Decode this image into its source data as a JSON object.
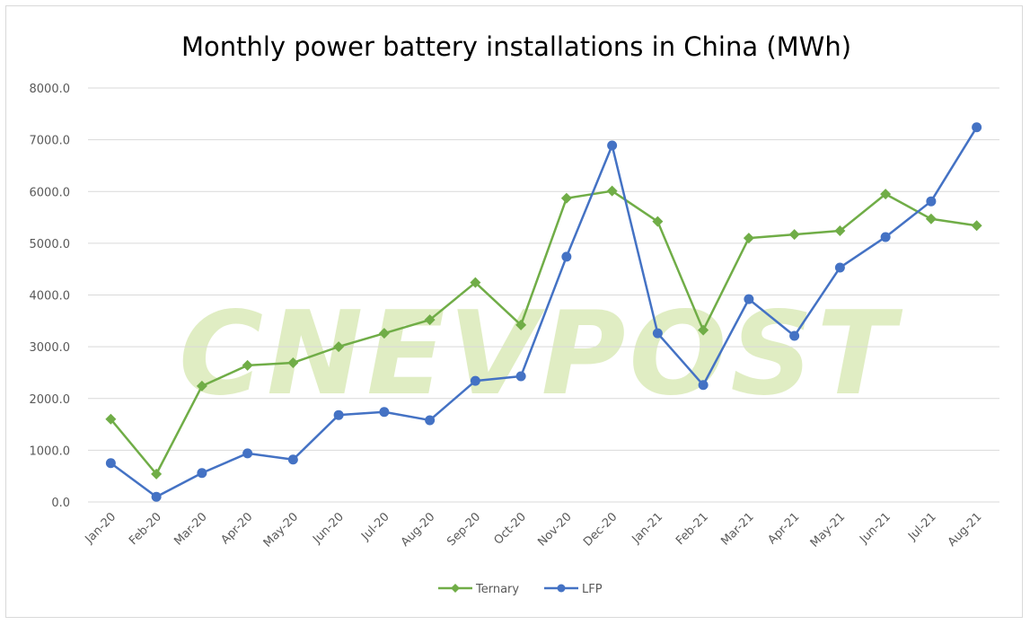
{
  "chart_data": {
    "type": "line",
    "title": "Monthly power battery installations in China (MWh)",
    "watermark": "CNEVPOST",
    "categories": [
      "Jan-20",
      "Feb-20",
      "Mar-20",
      "Apr-20",
      "May-20",
      "Jun-20",
      "Jul-20",
      "Aug-20",
      "Sep-20",
      "Oct-20",
      "Nov-20",
      "Dec-20",
      "Jan-21",
      "Feb-21",
      "Mar-21",
      "Apr-21",
      "May-21",
      "Jun-21",
      "Jul-21",
      "Aug-21"
    ],
    "yticks": [
      "0.0",
      "1000.0",
      "2000.0",
      "3000.0",
      "4000.0",
      "5000.0",
      "6000.0",
      "7000.0",
      "8000.0"
    ],
    "ylim": [
      0,
      8000
    ],
    "grid": true,
    "legend": "bottom",
    "series": [
      {
        "name": "Ternary",
        "color": "#70ad47",
        "marker": "diamond",
        "values": [
          1600,
          540,
          2240,
          2640,
          2690,
          3000,
          3260,
          3520,
          4240,
          3420,
          5870,
          6010,
          5420,
          3320,
          5100,
          5170,
          5240,
          5950,
          5470,
          5340
        ]
      },
      {
        "name": "LFP",
        "color": "#4472c4",
        "marker": "circle",
        "values": [
          750,
          100,
          560,
          940,
          820,
          1680,
          1740,
          1580,
          2340,
          2430,
          4740,
          6890,
          3260,
          2260,
          3920,
          3210,
          4530,
          5120,
          5810,
          7240
        ]
      }
    ]
  }
}
